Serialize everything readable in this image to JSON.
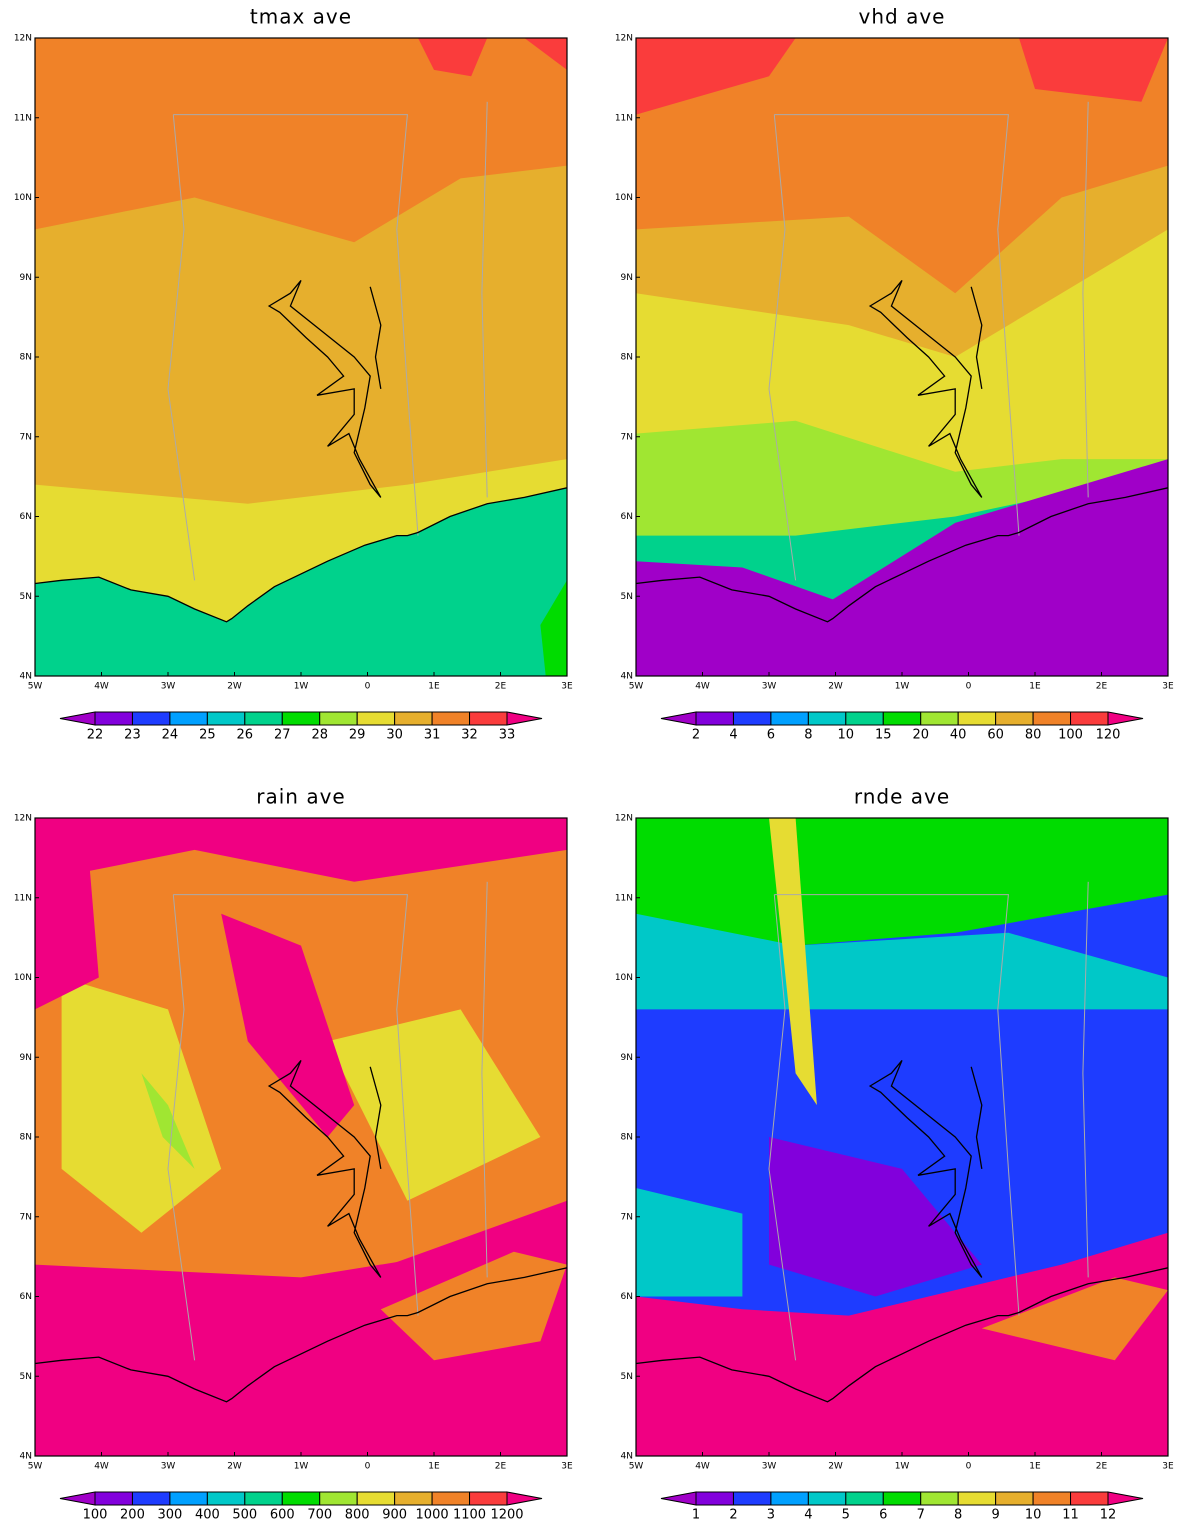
{
  "colors": [
    "#a000c8",
    "#8200dc",
    "#1e3cff",
    "#00a0ff",
    "#00c8c8",
    "#00d28c",
    "#00dc00",
    "#a0e632",
    "#e6dc32",
    "#e6af2d",
    "#f08228",
    "#fa3c3c",
    "#f00082"
  ],
  "xticks": [
    "5W",
    "4W",
    "3W",
    "2W",
    "1W",
    "0",
    "1E",
    "2E",
    "3E"
  ],
  "yticks": [
    "4N",
    "5N",
    "6N",
    "7N",
    "8N",
    "9N",
    "10N",
    "11N",
    "12N"
  ],
  "panels": [
    {
      "title": "tmax ave",
      "colorbar": [
        22,
        23,
        24,
        25,
        26,
        27,
        28,
        29,
        30,
        31,
        32,
        33
      ]
    },
    {
      "title": "vhd ave",
      "colorbar": [
        2,
        4,
        6,
        8,
        10,
        15,
        20,
        40,
        60,
        80,
        100,
        120
      ]
    },
    {
      "title": "rain ave",
      "colorbar": [
        100,
        200,
        300,
        400,
        500,
        600,
        700,
        800,
        900,
        1000,
        1100,
        1200
      ]
    },
    {
      "title": "rnde ave",
      "colorbar": [
        1,
        2,
        3,
        4,
        5,
        6,
        7,
        8,
        9,
        10,
        11,
        12
      ]
    }
  ]
}
